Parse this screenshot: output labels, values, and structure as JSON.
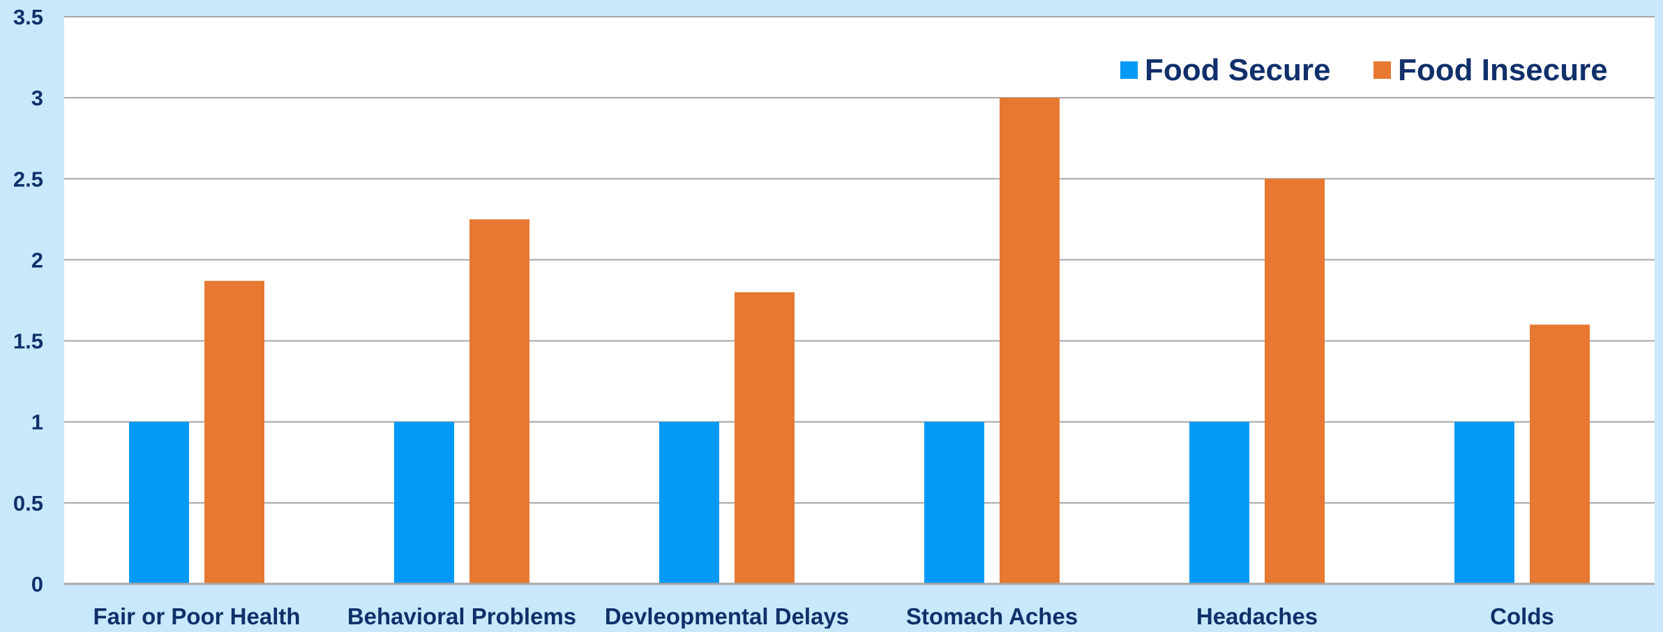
{
  "colors": {
    "background": "#c9e8fb",
    "plot_background": "#ffffff",
    "gridline": "#a6a6a6",
    "axis": "#a6a6a6",
    "text": "#10306b",
    "food_secure": "#0399f7",
    "food_insecure": "#e67831"
  },
  "chart_data": {
    "type": "bar",
    "title": "",
    "xlabel": "",
    "ylabel": "",
    "categories": [
      "Fair or Poor Health",
      "Behavioral Problems",
      "Devleopmental Delays",
      "Stomach Aches",
      "Headaches",
      "Colds"
    ],
    "series": [
      {
        "name": "Food Secure",
        "values": [
          1,
          1,
          1,
          1,
          1,
          1
        ]
      },
      {
        "name": "Food Insecure",
        "values": [
          1.87,
          2.25,
          1.8,
          3.0,
          2.5,
          1.6
        ]
      }
    ],
    "ylim": [
      0,
      3.5
    ],
    "yticks": [
      "0",
      "0.5",
      "1",
      "1.5",
      "2",
      "2.5",
      "3",
      "3.5"
    ],
    "grid": true,
    "legend_position": "top-right"
  }
}
